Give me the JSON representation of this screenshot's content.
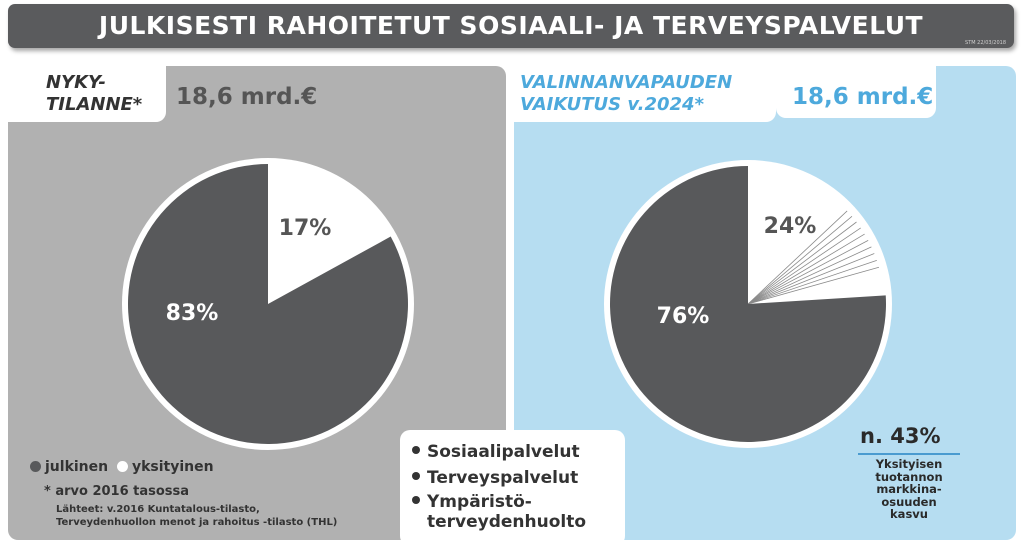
{
  "banner": {
    "title": "JULKISESTI RAHOITETUT SOSIAALI- JA TERVEYSPALVELUT",
    "code": "STM 22/03/2018"
  },
  "left": {
    "label_line1": "NYKY-",
    "label_line2": "TILANNE*",
    "amount": "18,6 mrd.€"
  },
  "right": {
    "label_line1": "VALINNANVAPAUDEN",
    "label_line2": "VAIKUTUS v.2024*",
    "amount": "18,6 mrd.€"
  },
  "legend": {
    "public": "julkinen",
    "private": "yksityinen"
  },
  "footnote": "* arvo 2016 tasossa",
  "sources": {
    "line1": "Lähteet: v.2016 Kuntatalous-tilasto,",
    "line2": "Terveydenhuollon menot ja rahoitus -tilasto (THL)"
  },
  "services": [
    "Sosiaalipalvelut",
    "Terveyspalvelut",
    "Ympäristö-",
    "terveydenhuolto"
  ],
  "market": {
    "value": "n. 43%",
    "label": [
      "Yksityisen",
      "tuotannon",
      "markkina-",
      "osuuden",
      "kasvu"
    ]
  },
  "colors": {
    "public": "#58595b",
    "private": "#ffffff",
    "left_panel": "#b1b1b1",
    "right_panel": "#b6ddf1",
    "accent_text": "#4da9dc",
    "banner": "#5a5b5d"
  },
  "chart_data": [
    {
      "type": "pie",
      "title": "NYKY-TILANNE*",
      "categories": [
        "yksityinen",
        "julkinen"
      ],
      "values": [
        17,
        83
      ],
      "labels": [
        "17%",
        "83%"
      ]
    },
    {
      "type": "pie",
      "title": "VALINNANVAPAUDEN VAIKUTUS v.2024*",
      "categories": [
        "yksityinen",
        "julkinen"
      ],
      "values": [
        24,
        76
      ],
      "labels": [
        "24%",
        "76%"
      ]
    }
  ]
}
